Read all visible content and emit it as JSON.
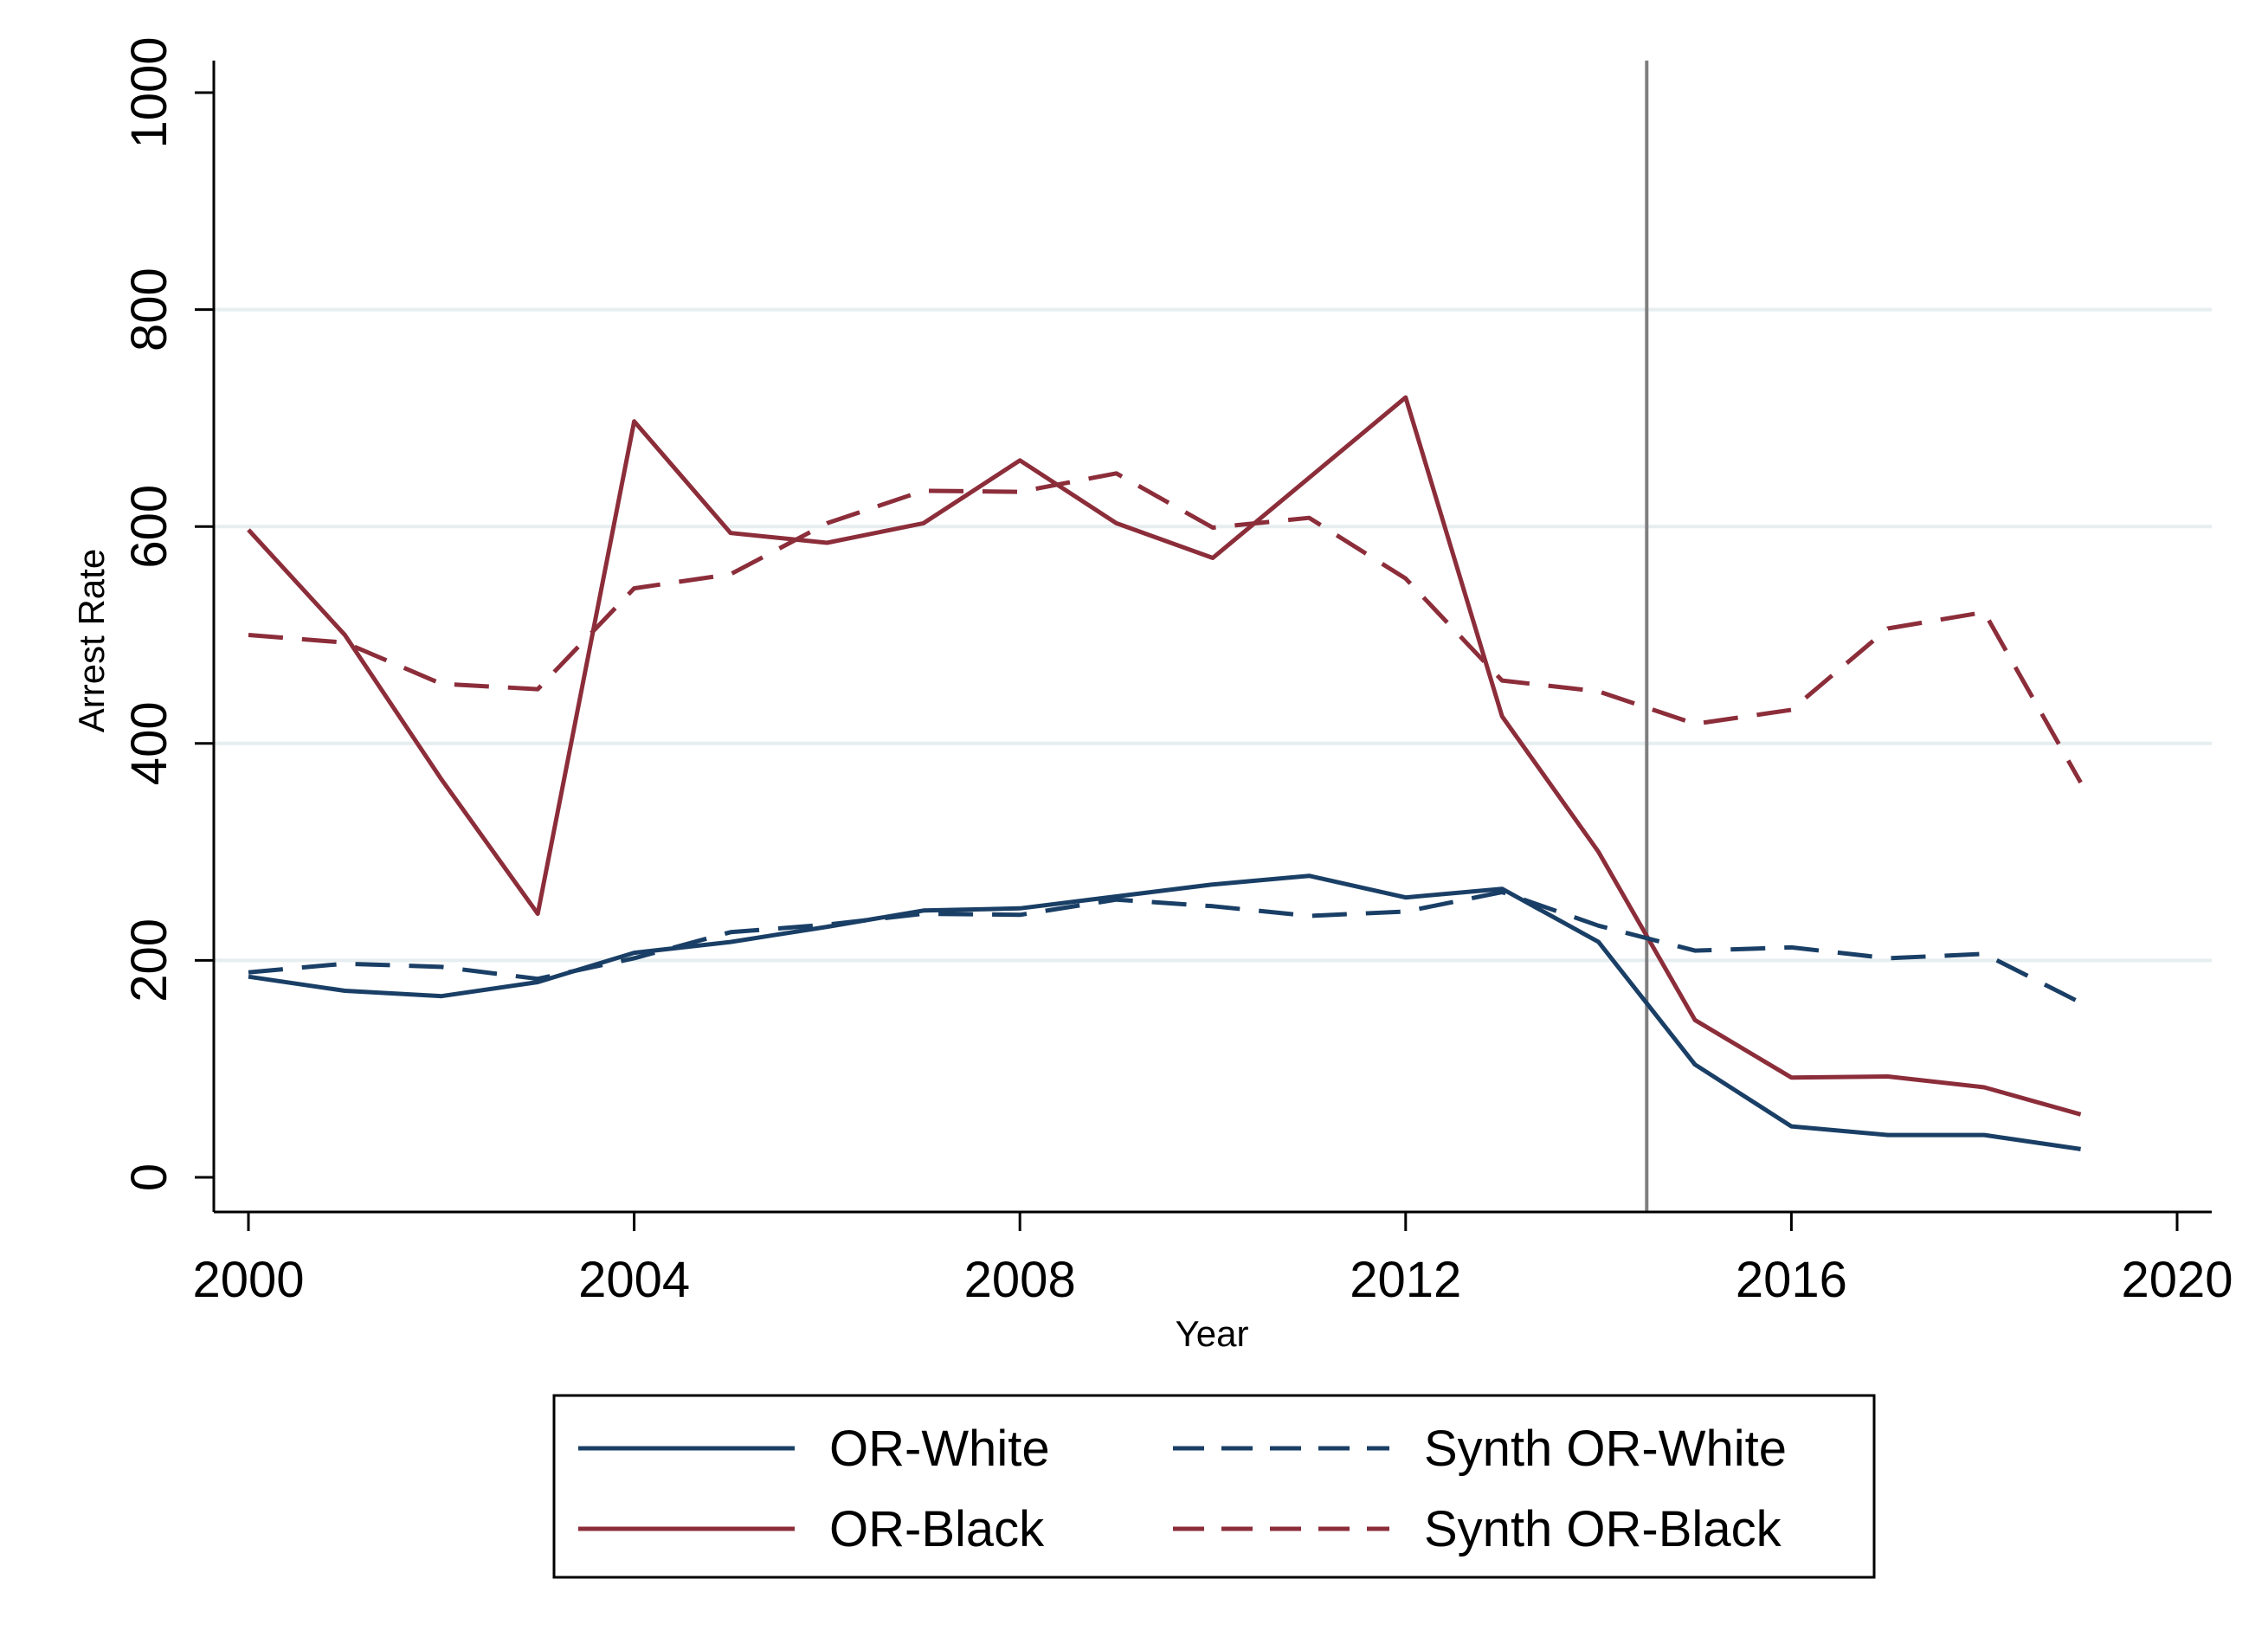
{
  "chart_data": {
    "type": "line",
    "title": "",
    "xlabel": "Year",
    "ylabel": "Arrest Rate",
    "xlim": [
      2000,
      2020
    ],
    "ylim": [
      0,
      1000
    ],
    "x_ticks": [
      "2000",
      "2004",
      "2008",
      "2012",
      "2016",
      "2020"
    ],
    "y_ticks": [
      "0",
      "200",
      "400",
      "600",
      "800",
      "1000"
    ],
    "grid": "horizontal",
    "treatment_line_x": 2014.5,
    "legend_position": "bottom",
    "x": [
      2000,
      2001,
      2002,
      2003,
      2004,
      2005,
      2006,
      2007,
      2008,
      2009,
      2010,
      2011,
      2012,
      2013,
      2014,
      2015,
      2016,
      2017,
      2018,
      2019
    ],
    "series": [
      {
        "name": "OR-White",
        "style": "solid",
        "color": "#1a3f66",
        "values": [
          185,
          172,
          167,
          180,
          207,
          217,
          231,
          246,
          248,
          259,
          270,
          278,
          258,
          266,
          217,
          104,
          47,
          39,
          39,
          26
        ]
      },
      {
        "name": "OR-Black",
        "style": "solid",
        "color": "#8c2d3a",
        "values": [
          597,
          500,
          367,
          243,
          697,
          594,
          585,
          603,
          661,
          603,
          571,
          645,
          719,
          425,
          300,
          145,
          92,
          93,
          83,
          58
        ]
      },
      {
        "name": "Synth OR-White",
        "style": "dashed",
        "color": "#1a3f66",
        "values": [
          189,
          197,
          194,
          183,
          202,
          226,
          233,
          243,
          242,
          256,
          250,
          241,
          245,
          263,
          232,
          209,
          212,
          202,
          206,
          161
        ]
      },
      {
        "name": "Synth OR-Black",
        "style": "dashed",
        "color": "#8c2d3a",
        "values": [
          500,
          493,
          455,
          450,
          543,
          556,
          603,
          633,
          632,
          649,
          599,
          608,
          552,
          458,
          448,
          418,
          431,
          506,
          521,
          364
        ]
      }
    ]
  }
}
